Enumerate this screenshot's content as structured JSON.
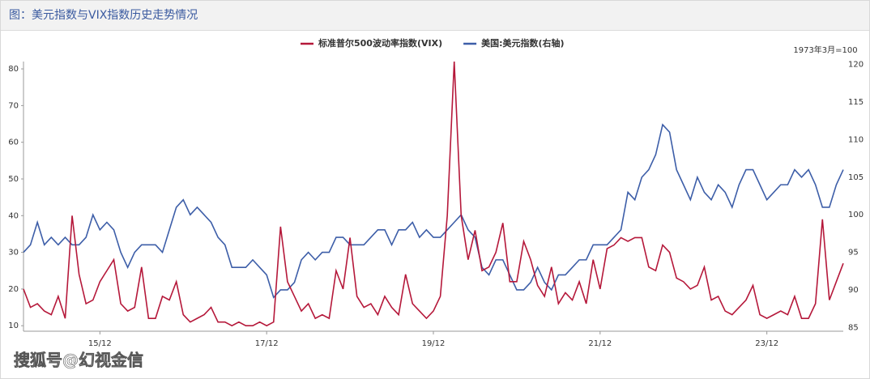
{
  "chart_data": {
    "type": "line",
    "title": "图：美元指数与VIX指数历史走势情况",
    "annotation": "1973年3月=100",
    "watermark": "搜狐号@幻视金信",
    "categories": [
      null,
      null,
      null,
      null,
      null,
      null,
      null,
      null,
      null,
      null,
      null,
      "15/12",
      null,
      null,
      null,
      null,
      null,
      null,
      null,
      null,
      null,
      null,
      null,
      null,
      null,
      null,
      null,
      null,
      null,
      null,
      null,
      null,
      null,
      null,
      null,
      "17/12",
      null,
      null,
      null,
      null,
      null,
      null,
      null,
      null,
      null,
      null,
      null,
      null,
      null,
      null,
      null,
      null,
      null,
      null,
      null,
      null,
      null,
      null,
      null,
      "19/12",
      null,
      null,
      null,
      null,
      null,
      null,
      null,
      null,
      null,
      null,
      null,
      null,
      null,
      null,
      null,
      null,
      null,
      null,
      null,
      null,
      null,
      null,
      null,
      "21/12",
      null,
      null,
      null,
      null,
      null,
      null,
      null,
      null,
      null,
      null,
      null,
      null,
      null,
      null,
      null,
      null,
      null,
      null,
      null,
      null,
      null,
      null,
      null,
      "23/12",
      null,
      null,
      null,
      null,
      null,
      null,
      null,
      null,
      null,
      null,
      null
    ],
    "series": [
      {
        "name": "标准普尔500波动率指数(VIX)",
        "color": "#b5183a",
        "values": [
          20,
          15,
          16,
          14,
          13,
          18,
          12,
          40,
          24,
          16,
          17,
          22,
          25,
          28,
          16,
          14,
          15,
          26,
          12,
          12,
          18,
          17,
          22,
          13,
          11,
          12,
          13,
          15,
          11,
          11,
          10,
          11,
          10,
          10,
          11,
          10,
          11,
          37,
          22,
          18,
          14,
          16,
          12,
          13,
          12,
          25,
          20,
          34,
          18,
          15,
          16,
          13,
          18,
          15,
          13,
          24,
          16,
          14,
          12,
          14,
          18,
          40,
          82,
          40,
          28,
          36,
          25,
          26,
          30,
          38,
          22,
          22,
          33,
          28,
          21,
          18,
          26,
          16,
          19,
          17,
          22,
          16,
          28,
          20,
          31,
          32,
          34,
          33,
          34,
          34,
          26,
          25,
          32,
          30,
          23,
          22,
          20,
          21,
          26,
          17,
          18,
          14,
          13,
          15,
          17,
          21,
          13,
          12,
          13,
          14,
          13,
          18,
          12,
          12,
          16,
          39,
          17,
          22,
          27
        ]
      },
      {
        "name": "美国:美元指数(右轴)",
        "color": "#3d5ea8",
        "axis": "y2",
        "values": [
          95,
          96,
          99,
          96,
          97,
          96,
          97,
          96,
          96,
          97,
          100,
          98,
          99,
          98,
          95,
          93,
          95,
          96,
          96,
          96,
          95,
          98,
          101,
          102,
          100,
          101,
          100,
          99,
          97,
          96,
          93,
          93,
          93,
          94,
          93,
          92,
          89,
          90,
          90,
          91,
          94,
          95,
          94,
          95,
          95,
          97,
          97,
          96,
          96,
          96,
          97,
          98,
          98,
          96,
          98,
          98,
          99,
          97,
          98,
          97,
          97,
          98,
          99,
          100,
          98,
          97,
          93,
          92,
          94,
          94,
          92,
          90,
          90,
          91,
          93,
          91,
          90,
          92,
          92,
          93,
          94,
          94,
          96,
          96,
          96,
          97,
          98,
          103,
          102,
          105,
          106,
          108,
          112,
          111,
          106,
          104,
          102,
          105,
          103,
          102,
          104,
          103,
          101,
          104,
          106,
          106,
          104,
          102,
          103,
          104,
          104,
          106,
          105,
          106,
          104,
          101,
          101,
          104,
          106
        ]
      }
    ],
    "ylim": [
      8.5,
      82
    ],
    "yticks": [
      10,
      20,
      30,
      40,
      50,
      60,
      70,
      80
    ],
    "y2lim": [
      84.5,
      120.4
    ],
    "y2ticks": [
      85,
      90,
      95,
      100,
      105,
      110,
      115,
      120
    ]
  }
}
